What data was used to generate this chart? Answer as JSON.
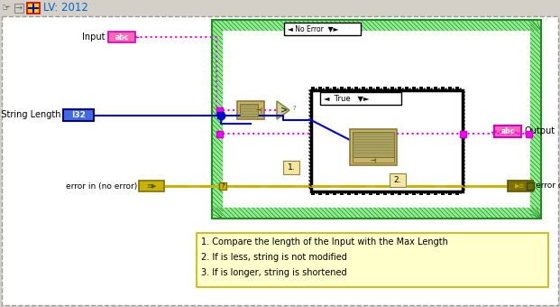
{
  "title": "LV: 2012",
  "toolbar_bg": "#d4d0c8",
  "canvas_bg": "#ffffff",
  "canvas_border": "#999999",
  "green_frame_fill": "#90ee90",
  "green_frame_border": "#228B22",
  "hatch_color": "#228B22",
  "case_border": "#111111",
  "tan_fill": "#c8b464",
  "tan_border": "#8a7a3a",
  "pink": "#ff00ff",
  "pink_dark": "#cc00cc",
  "blue_wire": "#0000cc",
  "blue_dark": "#00008b",
  "olive_wire": "#c8b400",
  "olive_dark": "#807000",
  "note_bg": "#ffffcc",
  "note_border": "#c8b400",
  "note_text": [
    "1. Compare the length of the Input with the Max Length",
    "2. If is less, string is not modified",
    "3. If is longer, string is shortened"
  ],
  "lv_icon_yellow": "#ffcc00",
  "lv_icon_red": "#cc0000",
  "lv_icon_blue": "#0000cc",
  "title_color": "#0066cc",
  "input_box_fill": "#ff69b4",
  "input_box_border": "#cc00cc",
  "i32_fill": "#4169e1",
  "i32_border": "#00008b"
}
